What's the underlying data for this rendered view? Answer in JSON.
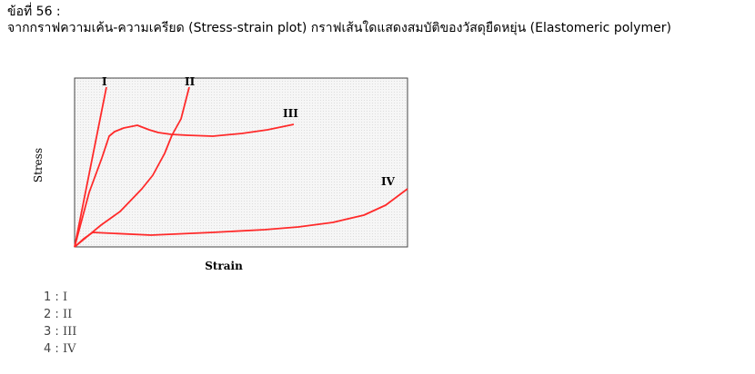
{
  "question": {
    "number_label": "ข้อที่ 56 :",
    "text": "จากกราฟความเค้น-ความเครียด (Stress-strain plot) กราฟเส้นใดแสดงสมบัติของวัสดุยืดหยุ่น (Elastomeric polymer)"
  },
  "figure": {
    "ylabel": "Stress",
    "xlabel": "Strain",
    "curve_labels": [
      "I",
      "II",
      "III",
      "IV"
    ],
    "curve_color": "#ff2a2a",
    "plot_background": "#f6f6f6"
  },
  "choices": [
    {
      "num": "1",
      "sep": ":",
      "label": "I"
    },
    {
      "num": "2",
      "sep": ":",
      "label": "II"
    },
    {
      "num": "3",
      "sep": ":",
      "label": "III"
    },
    {
      "num": "4",
      "sep": ":",
      "label": "IV"
    }
  ]
}
